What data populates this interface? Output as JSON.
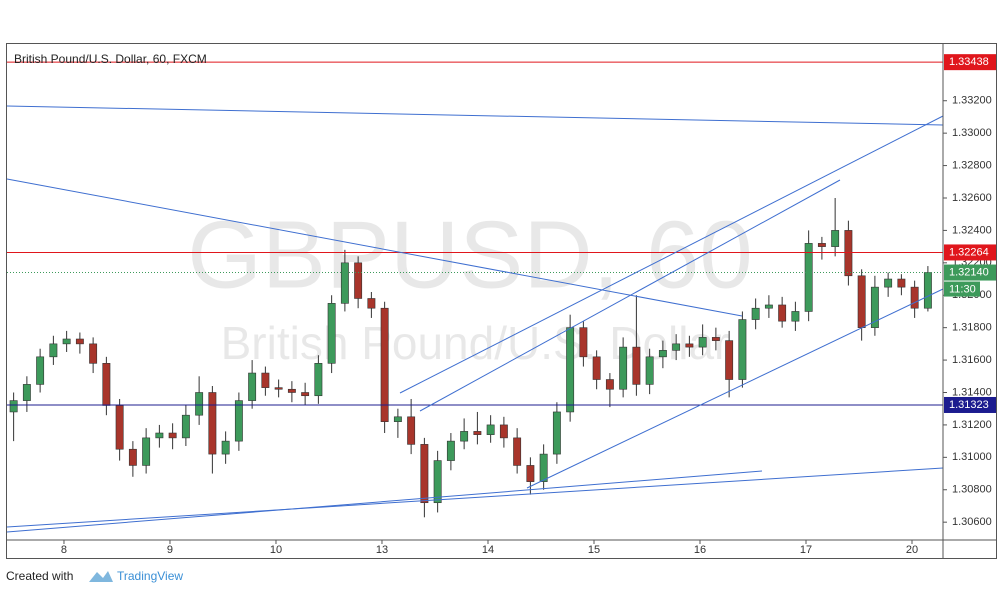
{
  "chart_data": {
    "type": "candlestick",
    "title": "British Pound/U.S. Dollar, 60, FXCM",
    "watermark": "GBPUSD, 60",
    "watermark_subtitle": "British Pound/U.S. Dollar",
    "up_color": "#3d9a5b",
    "down_color": "#a8352b",
    "open": [
      1.3128,
      1.3135,
      1.3145,
      1.3162,
      1.317,
      1.3173,
      1.317,
      1.3158,
      1.3132,
      1.3105,
      1.3095,
      1.3112,
      1.3115,
      1.3112,
      1.3126,
      1.314,
      1.3102,
      1.311,
      1.3135,
      1.3152,
      1.3143,
      1.3142,
      1.314,
      1.3138,
      1.3158,
      1.3195,
      1.322,
      1.3198,
      1.3192,
      1.3122,
      1.3125,
      1.3108,
      1.3072,
      1.3098,
      1.311,
      1.3116,
      1.3114,
      1.312,
      1.3112,
      1.3095,
      1.3085,
      1.3102,
      1.3128,
      1.318,
      1.3162,
      1.3148,
      1.3142,
      1.3168,
      1.3145,
      1.3162,
      1.3166,
      1.317,
      1.3168,
      1.3174,
      1.3172,
      1.3148,
      1.3185,
      1.3192,
      1.3194,
      1.3184,
      1.319,
      1.3232,
      1.323,
      1.324,
      1.3212,
      1.318,
      1.3205,
      1.321,
      1.3205,
      1.3192
    ],
    "high": [
      1.314,
      1.315,
      1.3167,
      1.3175,
      1.3178,
      1.3177,
      1.3174,
      1.3162,
      1.3136,
      1.311,
      1.3118,
      1.312,
      1.3121,
      1.3132,
      1.315,
      1.3144,
      1.3116,
      1.314,
      1.316,
      1.3156,
      1.3148,
      1.3147,
      1.3146,
      1.3163,
      1.32,
      1.3228,
      1.3224,
      1.3202,
      1.3196,
      1.313,
      1.3136,
      1.3112,
      1.3104,
      1.3115,
      1.3124,
      1.3128,
      1.3126,
      1.3125,
      1.3118,
      1.31,
      1.3108,
      1.3134,
      1.3188,
      1.3184,
      1.3166,
      1.3152,
      1.3174,
      1.32,
      1.3167,
      1.3172,
      1.3176,
      1.3175,
      1.3182,
      1.318,
      1.3178,
      1.319,
      1.3198,
      1.32,
      1.3199,
      1.3196,
      1.324,
      1.3236,
      1.326,
      1.3246,
      1.3216,
      1.3212,
      1.3214,
      1.3213,
      1.3209,
      1.3218
    ],
    "low": [
      1.311,
      1.3128,
      1.314,
      1.3157,
      1.3165,
      1.3164,
      1.3152,
      1.3126,
      1.3098,
      1.3088,
      1.309,
      1.3106,
      1.3105,
      1.3107,
      1.312,
      1.309,
      1.3096,
      1.3104,
      1.313,
      1.3138,
      1.3137,
      1.3134,
      1.3132,
      1.3133,
      1.3152,
      1.319,
      1.3192,
      1.3186,
      1.3115,
      1.3112,
      1.3102,
      1.3063,
      1.3066,
      1.3092,
      1.3105,
      1.3108,
      1.3109,
      1.3106,
      1.309,
      1.3077,
      1.308,
      1.3096,
      1.3122,
      1.3156,
      1.3142,
      1.3131,
      1.3137,
      1.3138,
      1.3139,
      1.3155,
      1.316,
      1.3162,
      1.3163,
      1.3166,
      1.3137,
      1.3143,
      1.3179,
      1.3186,
      1.318,
      1.3178,
      1.3184,
      1.3222,
      1.3224,
      1.3206,
      1.3172,
      1.3175,
      1.3199,
      1.32,
      1.3186,
      1.319
    ],
    "close": [
      1.3135,
      1.3145,
      1.3162,
      1.317,
      1.3173,
      1.317,
      1.3158,
      1.3132,
      1.3105,
      1.3095,
      1.3112,
      1.3115,
      1.3112,
      1.3126,
      1.314,
      1.3102,
      1.311,
      1.3135,
      1.3152,
      1.3143,
      1.3142,
      1.314,
      1.3138,
      1.3158,
      1.3195,
      1.322,
      1.3198,
      1.3192,
      1.3122,
      1.3125,
      1.3108,
      1.3072,
      1.3098,
      1.311,
      1.3116,
      1.3114,
      1.312,
      1.3112,
      1.3095,
      1.3085,
      1.3102,
      1.3128,
      1.318,
      1.3162,
      1.3148,
      1.3142,
      1.3168,
      1.3145,
      1.3162,
      1.3166,
      1.317,
      1.3168,
      1.3174,
      1.3172,
      1.3148,
      1.3185,
      1.3192,
      1.3194,
      1.3184,
      1.319,
      1.3232,
      1.323,
      1.324,
      1.3212,
      1.318,
      1.3205,
      1.321,
      1.3205,
      1.3192,
      1.3214
    ],
    "xlim": [
      -0.5,
      70.14
    ],
    "xticks": [
      {
        "value": 3.8,
        "label": "8"
      },
      {
        "value": 11.8,
        "label": "9"
      },
      {
        "value": 19.8,
        "label": "10"
      },
      {
        "value": 27.8,
        "label": "13"
      },
      {
        "value": 35.8,
        "label": "14"
      },
      {
        "value": 43.8,
        "label": "15"
      },
      {
        "value": 51.8,
        "label": "16"
      },
      {
        "value": 59.8,
        "label": "17"
      },
      {
        "value": 67.8,
        "label": "20"
      }
    ],
    "ylim": [
      1.3049,
      1.3355
    ],
    "yticks": [
      {
        "value": 1.306,
        "label": "1.30600"
      },
      {
        "value": 1.308,
        "label": "1.30800"
      },
      {
        "value": 1.31,
        "label": "1.31000"
      },
      {
        "value": 1.312,
        "label": "1.31200"
      },
      {
        "value": 1.314,
        "label": "1.31400"
      },
      {
        "value": 1.316,
        "label": "1.31600"
      },
      {
        "value": 1.318,
        "label": "1.31800"
      },
      {
        "value": 1.32,
        "label": "1.32000"
      },
      {
        "value": 1.322,
        "label": "1.32200"
      },
      {
        "value": 1.324,
        "label": "1.32400"
      },
      {
        "value": 1.326,
        "label": "1.32600"
      },
      {
        "value": 1.328,
        "label": "1.32800"
      },
      {
        "value": 1.33,
        "label": "1.33000"
      },
      {
        "value": 1.332,
        "label": "1.33200"
      }
    ],
    "grid": false,
    "levels": [
      {
        "value": 1.33438,
        "label": "1.33438",
        "color": "#e0161c"
      },
      {
        "value": 1.32264,
        "label": "1.32264",
        "color": "#e0161c"
      },
      {
        "value": 1.31323,
        "label": "1.31323",
        "color": "#1c1c8f"
      }
    ],
    "current": {
      "value": 1.3214,
      "label": "1.32140",
      "time": "11:30",
      "color": "#3d9a5b"
    }
  },
  "footer": {
    "text": "Created with",
    "brand": "TradingView"
  }
}
